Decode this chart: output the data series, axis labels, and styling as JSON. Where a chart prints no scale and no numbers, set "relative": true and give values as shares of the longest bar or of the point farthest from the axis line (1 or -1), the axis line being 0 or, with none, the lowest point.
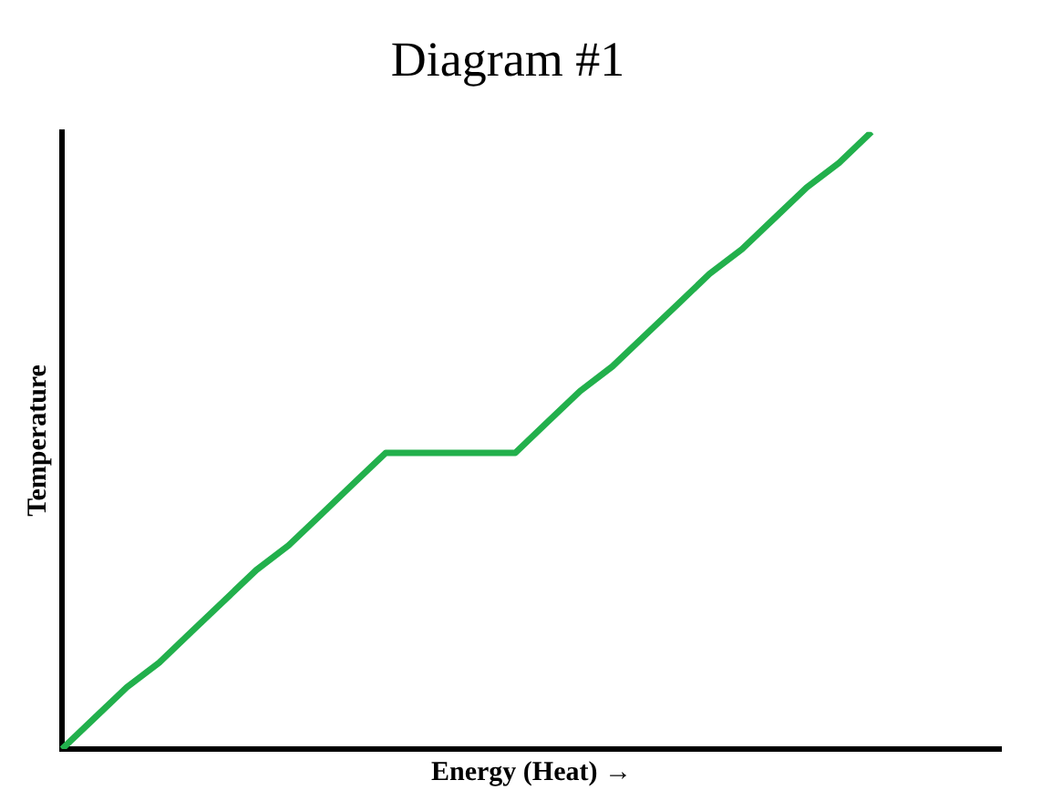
{
  "chart_data": {
    "type": "line",
    "title": "Diagram #1",
    "xlabel": "Energy (Heat) →",
    "ylabel": "Temperature",
    "relative": true,
    "tick_labels": false,
    "grid": false,
    "legend": false,
    "marker": "none",
    "categories": [
      null,
      null,
      null,
      null,
      null,
      null,
      null,
      null,
      null,
      null,
      null,
      null,
      null,
      null,
      null,
      null,
      null,
      null,
      null,
      null,
      null,
      null,
      null,
      null,
      null,
      null,
      null,
      null,
      null,
      null
    ],
    "series": [
      {
        "color": "#22b04c",
        "values": [
          0,
          0.05,
          0.1,
          0.14,
          0.19,
          0.24,
          0.29,
          0.33,
          0.38,
          0.43,
          0.48,
          0.48,
          0.48,
          0.48,
          0.48,
          0.53,
          0.58,
          0.62,
          0.67,
          0.72,
          0.77,
          0.81,
          0.86,
          0.91,
          0.95,
          1,
          null,
          null,
          null,
          null
        ]
      }
    ]
  }
}
